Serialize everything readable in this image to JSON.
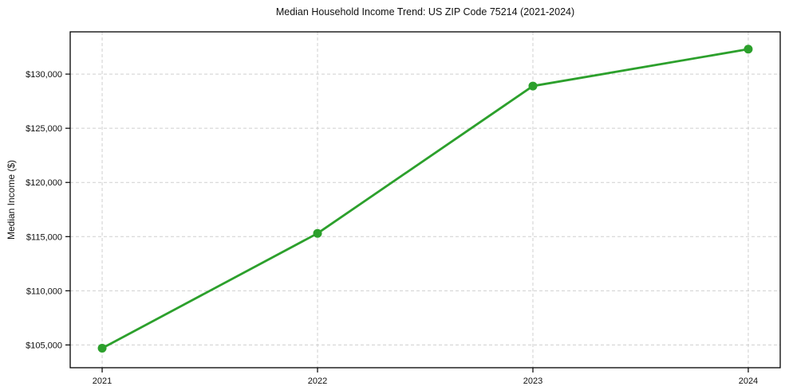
{
  "chart_data": {
    "type": "line",
    "title": "Median Household Income Trend: US ZIP Code 75214 (2021-2024)",
    "xlabel": "",
    "ylabel": "Median Income ($)",
    "x": [
      2021,
      2022,
      2023,
      2024
    ],
    "xtick_labels": [
      "2021",
      "2022",
      "2023",
      "2024"
    ],
    "series": [
      {
        "name": "Median Household Income",
        "values": [
          104700,
          115300,
          128900,
          132300
        ]
      }
    ],
    "yticks": [
      105000,
      110000,
      115000,
      120000,
      125000,
      130000
    ],
    "ytick_labels": [
      "$105,000",
      "$110,000",
      "$115,000",
      "$120,000",
      "$125,000",
      "$130,000"
    ],
    "ylim": [
      102900,
      133900
    ],
    "grid": true,
    "legend": "none",
    "marker": "circle",
    "colors": {
      "line": "#2ca02c",
      "marker": "#2ca02c",
      "grid": "#cfcfcf",
      "spine": "#000000",
      "text": "#111111"
    }
  }
}
